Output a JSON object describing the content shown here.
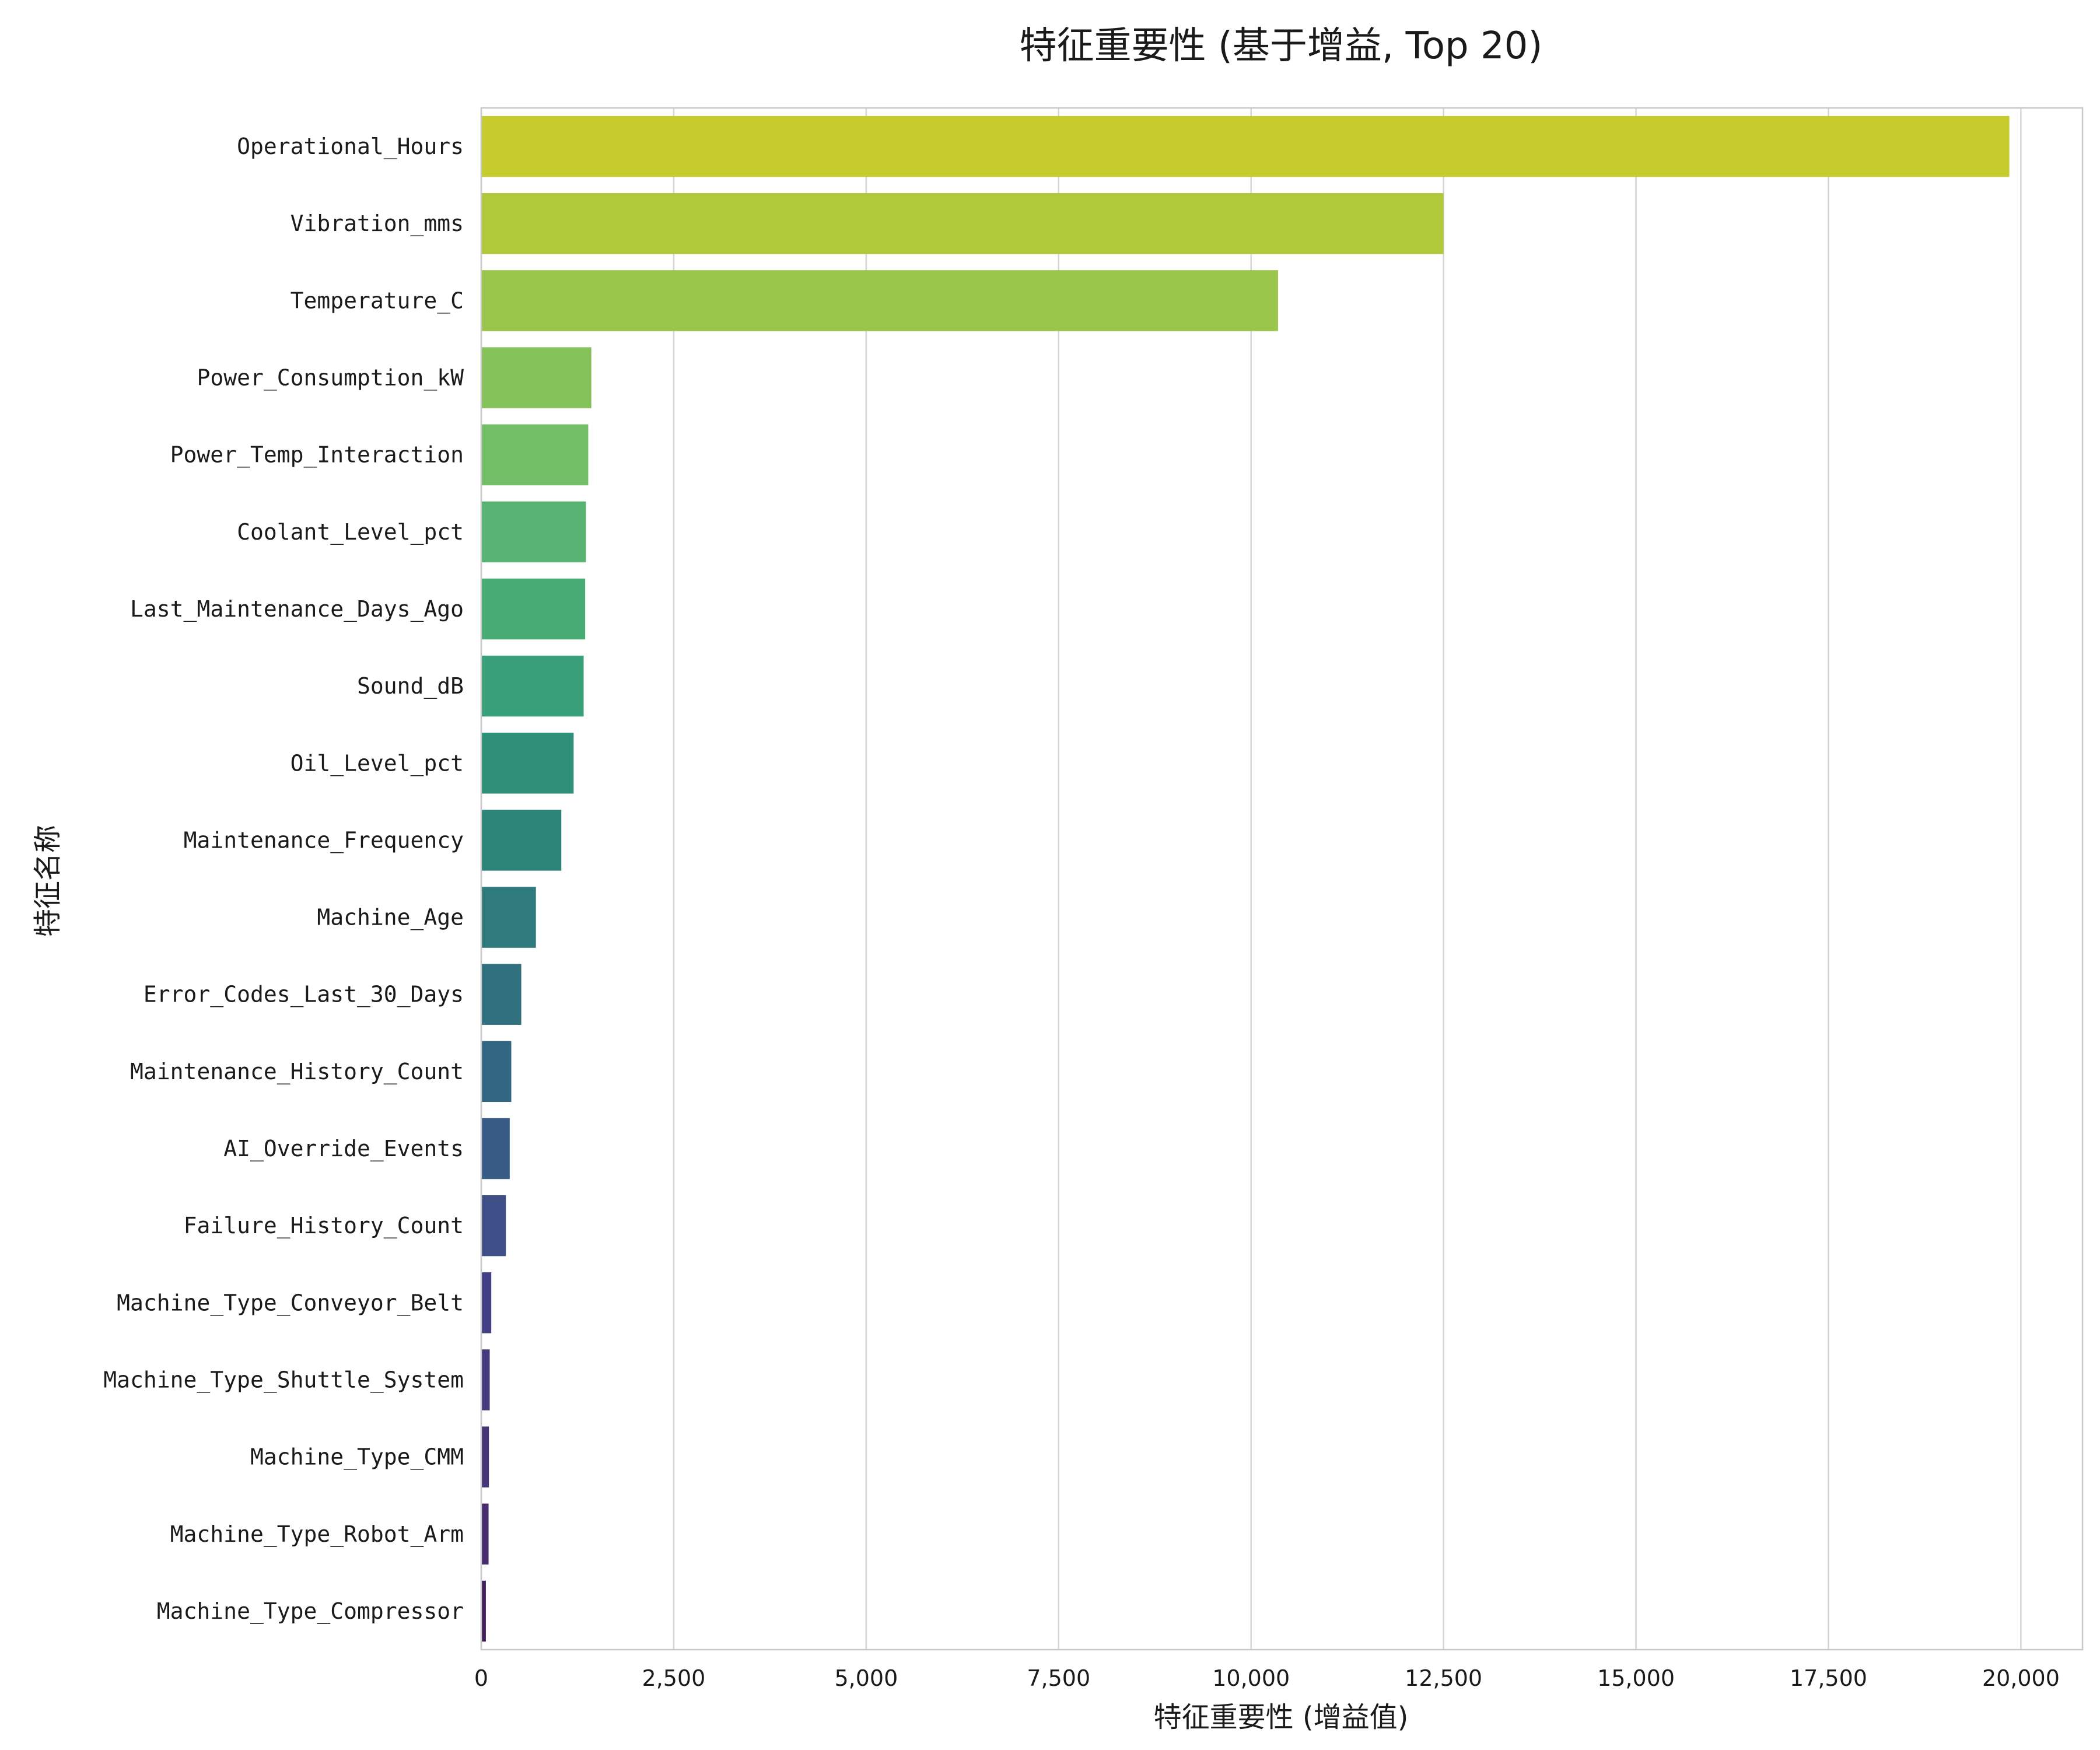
{
  "chart_data": {
    "type": "bar",
    "orientation": "horizontal",
    "title": "特征重要性 (基于增益, Top 20)",
    "xlabel": "特征重要性 (增益值)",
    "ylabel": "特征名称",
    "xlim": [
      0,
      20800
    ],
    "xticks": [
      0,
      2500,
      5000,
      7500,
      10000,
      12500,
      15000,
      17500,
      20000
    ],
    "xtick_labels": [
      "0",
      "2,500",
      "5,000",
      "7,500",
      "10,000",
      "12,500",
      "15,000",
      "17,500",
      "20,000"
    ],
    "grid": "vertical",
    "categories": [
      "Operational_Hours",
      "Vibration_mms",
      "Temperature_C",
      "Power_Consumption_kW",
      "Power_Temp_Interaction",
      "Coolant_Level_pct",
      "Last_Maintenance_Days_Ago",
      "Sound_dB",
      "Oil_Level_pct",
      "Maintenance_Frequency",
      "Machine_Age",
      "Error_Codes_Last_30_Days",
      "Maintenance_History_Count",
      "AI_Override_Events",
      "Failure_History_Count",
      "Machine_Type_Conveyor_Belt",
      "Machine_Type_Shuttle_System",
      "Machine_Type_CMM",
      "Machine_Type_Robot_Arm",
      "Machine_Type_Compressor"
    ],
    "values": [
      19850,
      12500,
      10350,
      1430,
      1390,
      1360,
      1350,
      1330,
      1200,
      1040,
      710,
      520,
      390,
      370,
      320,
      130,
      110,
      100,
      95,
      60
    ],
    "colors": [
      "#c7cc2f",
      "#b0c93b",
      "#98c54a",
      "#85c25a",
      "#73bf68",
      "#58b372",
      "#48ab74",
      "#389f79",
      "#2e9078",
      "#2c8377",
      "#2f7a7c",
      "#31717f",
      "#336683",
      "#385c85",
      "#3f4f87",
      "#433f84",
      "#463a7d",
      "#483577",
      "#482c6d",
      "#451f5c"
    ]
  }
}
